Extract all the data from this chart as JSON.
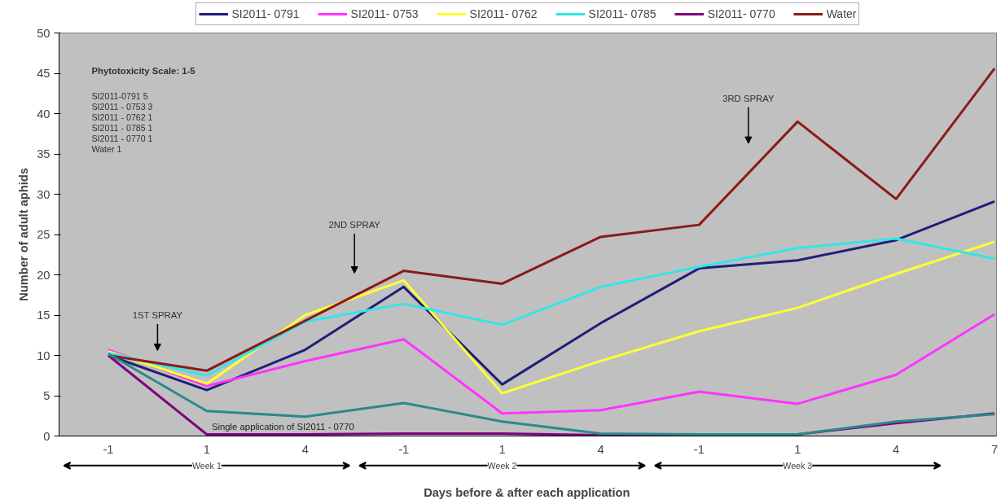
{
  "chart_data": {
    "type": "line",
    "xlabel": "Days before & after each application",
    "ylabel": "Number of adult aphids",
    "categories": [
      "-1",
      "1",
      "4",
      "-1",
      "1",
      "4",
      "-1",
      "1",
      "4",
      "7"
    ],
    "ylim": [
      0,
      50
    ],
    "yticks": [
      0,
      5,
      10,
      15,
      20,
      25,
      30,
      35,
      40,
      45,
      50
    ],
    "grid": false,
    "legend": "top",
    "marker": "none",
    "line_style": "solid",
    "series": [
      {
        "name": "SI2011- 0791",
        "color": "#1f1f7a",
        "values": [
          10.0,
          5.7,
          10.7,
          18.5,
          6.4,
          14.0,
          20.8,
          21.8,
          24.3,
          29.1
        ]
      },
      {
        "name": "SI2011- 0753",
        "color": "#ff33ff",
        "values": [
          10.7,
          6.2,
          9.3,
          12.0,
          2.8,
          3.2,
          5.5,
          4.0,
          7.6,
          15.1
        ]
      },
      {
        "name": "SI2011- 0762",
        "color": "#ffff33",
        "values": [
          10.5,
          6.5,
          15.0,
          19.3,
          5.3,
          9.3,
          13.0,
          15.9,
          20.1,
          24.1
        ]
      },
      {
        "name": "SI2011- 0785",
        "color": "#33e6e6",
        "values": [
          10.3,
          7.5,
          14.2,
          16.4,
          13.8,
          18.5,
          21.0,
          23.3,
          24.5,
          22.0
        ]
      },
      {
        "name": "SI2011- 0770",
        "color": "#800080",
        "values": [
          10.0,
          0.2,
          0.2,
          0.3,
          0.3,
          0.1,
          0.1,
          0.2,
          1.6,
          2.8
        ]
      },
      {
        "name": "Water",
        "color": "#8b1a1a",
        "values": [
          10.0,
          8.1,
          14.3,
          20.5,
          18.9,
          24.7,
          26.2,
          39.0,
          29.4,
          45.6
        ]
      },
      {
        "color": "#2a8a8a",
        "values": [
          10.2,
          3.1,
          2.4,
          4.1,
          1.8,
          0.3,
          0.2,
          0.2,
          1.8,
          2.7
        ]
      }
    ],
    "annotations": [
      "Phytotoxicity Scale: 1-5",
      "SI2011-0791     5",
      "SI2011 - 0753   3",
      "SI2011 - 0762   1",
      "SI2011 - 0785   1",
      "SI2011 - 0770   1",
      "Water                1",
      "1ST SPRAY",
      "2ND SPRAY",
      "3RD SPRAY",
      "Single application of SI2011 - 0770",
      "Week 1",
      "Week 2",
      "Week 3"
    ]
  }
}
